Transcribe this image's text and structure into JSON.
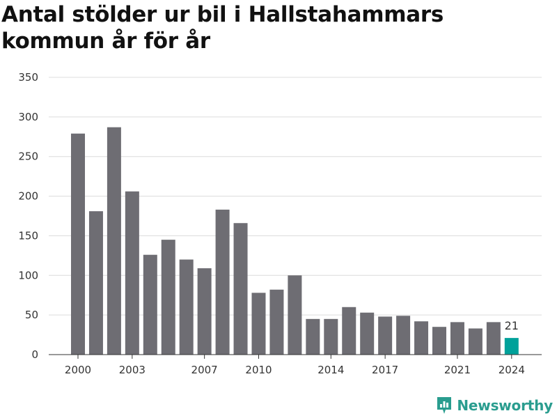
{
  "chart_data": {
    "type": "bar",
    "title": "Antal stölder ur bil i Hallstahammars kommun år för år",
    "xlabel": "",
    "ylabel": "",
    "ylim": [
      0,
      350
    ],
    "yticks": [
      0,
      50,
      100,
      150,
      200,
      250,
      300,
      350
    ],
    "grid": true,
    "categories": [
      2000,
      2001,
      2002,
      2003,
      2004,
      2005,
      2006,
      2007,
      2008,
      2009,
      2010,
      2011,
      2012,
      2013,
      2014,
      2015,
      2016,
      2017,
      2018,
      2019,
      2020,
      2021,
      2022,
      2023,
      2024
    ],
    "x_tick_labels": [
      "2000",
      "2003",
      "2007",
      "2010",
      "2014",
      "2017",
      "2021",
      "2024"
    ],
    "values": [
      279,
      181,
      287,
      206,
      126,
      145,
      120,
      109,
      183,
      166,
      78,
      82,
      100,
      45,
      45,
      60,
      53,
      48,
      49,
      42,
      35,
      41,
      33,
      41,
      21
    ],
    "highlight": {
      "category": 2024,
      "label": "21"
    },
    "colors": {
      "bar": "#6e6d73",
      "highlight": "#00a19a",
      "grid": "#dcdcdc",
      "axis": "#333333"
    }
  },
  "brand": {
    "name": "Newsworthy",
    "icon": "newsworthy-logo-icon",
    "color": "#2a9d8f"
  }
}
